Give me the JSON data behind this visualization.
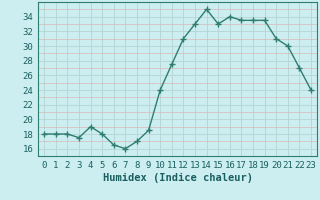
{
  "x": [
    0,
    1,
    2,
    3,
    4,
    5,
    6,
    7,
    8,
    9,
    10,
    11,
    12,
    13,
    14,
    15,
    16,
    17,
    18,
    19,
    20,
    21,
    22,
    23
  ],
  "y": [
    18,
    18,
    18,
    17.5,
    19,
    18,
    16.5,
    16,
    17,
    18.5,
    24,
    27.5,
    31,
    33,
    35,
    33,
    34,
    33.5,
    33.5,
    33.5,
    31,
    30,
    27,
    24
  ],
  "line_color": "#2e7d6e",
  "marker": "+",
  "marker_size": 4,
  "marker_lw": 1.0,
  "line_width": 1.0,
  "bg_color": "#cceef0",
  "grid_major_color": "#b8d8d8",
  "grid_minor_color": "#d8b8b8",
  "xlabel": "Humidex (Indice chaleur)",
  "xlim": [
    -0.5,
    23.5
  ],
  "ylim": [
    15.0,
    36.0
  ],
  "yticks": [
    16,
    18,
    20,
    22,
    24,
    26,
    28,
    30,
    32,
    34
  ],
  "xticks": [
    0,
    1,
    2,
    3,
    4,
    5,
    6,
    7,
    8,
    9,
    10,
    11,
    12,
    13,
    14,
    15,
    16,
    17,
    18,
    19,
    20,
    21,
    22,
    23
  ],
  "font_color": "#1a5f5f",
  "tick_font_size": 6.5,
  "xlabel_font_size": 7.5,
  "spine_color": "#2e7d6e"
}
